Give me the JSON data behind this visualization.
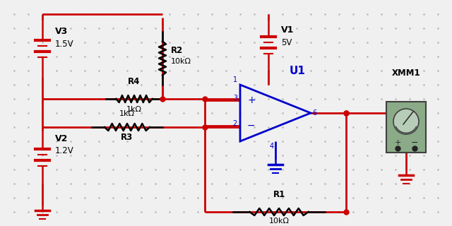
{
  "bg_color": "#f0f0f0",
  "dot_color": "#b0b0b0",
  "wire_color": "#cc0000",
  "blue_color": "#0000cc",
  "black": "#000000",
  "grid_step": 20,
  "figw": 6.4,
  "figh": 3.2,
  "dpi": 100,
  "V3_label": "V3",
  "V3_value": "1.5V",
  "V2_label": "V2",
  "V2_value": "1.2V",
  "V1_label": "V1",
  "V1_value": "5V",
  "R2_label": "R2",
  "R2_value": "10kΩ",
  "R4_label": "R4",
  "R4_value": "1kΩ",
  "R3_label": "1kΩ",
  "R3_name": "R3",
  "R1_label": "R1",
  "R1_value": "10kΩ",
  "U1_label": "U1",
  "XMM1_label": "XMM1",
  "pin1": "1",
  "pin2": "2",
  "pin3": "3",
  "pin4": "4",
  "pin6": "6"
}
